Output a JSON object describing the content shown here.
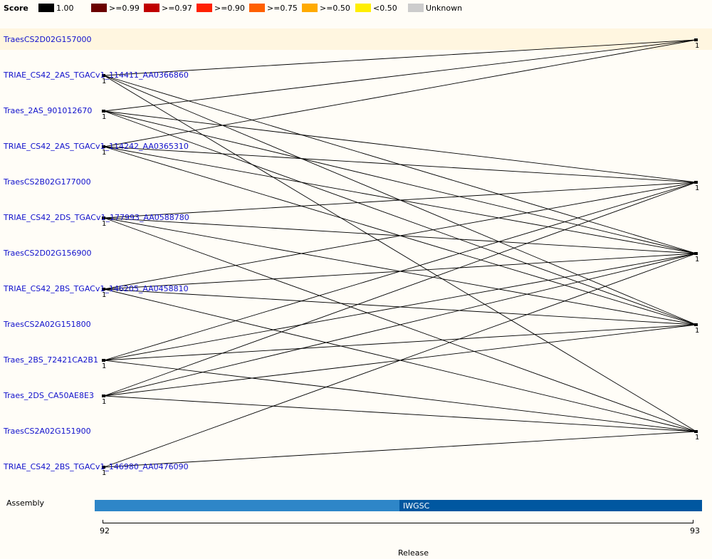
{
  "legend": {
    "title": "Score",
    "items": [
      {
        "label": "1.00",
        "color": "#000000"
      },
      {
        "label": ">=0.99",
        "color": "#6b0000"
      },
      {
        "label": ">=0.97",
        "color": "#c00000"
      },
      {
        "label": ">=0.90",
        "color": "#ff2000"
      },
      {
        "label": ">=0.75",
        "color": "#ff6000"
      },
      {
        "label": ">=0.50",
        "color": "#ffaa00"
      },
      {
        "label": "<0.50",
        "color": "#ffee00"
      },
      {
        "label": "Unknown",
        "color": "#cccccc"
      }
    ]
  },
  "genes": [
    {
      "id": "TraesCS2D02G157000",
      "highlighted": true
    },
    {
      "id": "TRIAE_CS42_2AS_TGACv1_114411_AA0366860"
    },
    {
      "id": "Traes_2AS_901012670"
    },
    {
      "id": "TRIAE_CS42_2AS_TGACv1_114242_AA0365310"
    },
    {
      "id": "TraesCS2B02G177000"
    },
    {
      "id": "TRIAE_CS42_2DS_TGACv1_177993_AA0588780"
    },
    {
      "id": "TraesCS2D02G156900"
    },
    {
      "id": "TRIAE_CS42_2BS_TGACv1_146205_AA0458810"
    },
    {
      "id": "TraesCS2A02G151800"
    },
    {
      "id": "Traes_2BS_72421CA2B1"
    },
    {
      "id": "Traes_2DS_CA50AE8E3"
    },
    {
      "id": "TraesCS2A02G151900"
    },
    {
      "id": "TRIAE_CS42_2BS_TGACv1_146980_AA0476090"
    }
  ],
  "left_nodes": [
    {
      "row": 1,
      "count": "1"
    },
    {
      "row": 2,
      "count": "1"
    },
    {
      "row": 3,
      "count": "1"
    },
    {
      "row": 5,
      "count": "1"
    },
    {
      "row": 7,
      "count": "1"
    },
    {
      "row": 9,
      "count": "1"
    },
    {
      "row": 10,
      "count": "1"
    },
    {
      "row": 12,
      "count": "1"
    }
  ],
  "right_nodes": [
    {
      "row": 0,
      "count": "1"
    },
    {
      "row": 4,
      "count": "1"
    },
    {
      "row": 6,
      "count": "1"
    },
    {
      "row": 8,
      "count": "1"
    },
    {
      "row": 11,
      "count": "1"
    }
  ],
  "links": [
    [
      1,
      0
    ],
    [
      1,
      6
    ],
    [
      1,
      8
    ],
    [
      1,
      11
    ],
    [
      2,
      0
    ],
    [
      2,
      4
    ],
    [
      2,
      6
    ],
    [
      2,
      8
    ],
    [
      3,
      0
    ],
    [
      3,
      4
    ],
    [
      3,
      6
    ],
    [
      3,
      8
    ],
    [
      5,
      4
    ],
    [
      5,
      6
    ],
    [
      5,
      8
    ],
    [
      5,
      11
    ],
    [
      7,
      4
    ],
    [
      7,
      6
    ],
    [
      7,
      8
    ],
    [
      7,
      11
    ],
    [
      9,
      4
    ],
    [
      9,
      6
    ],
    [
      9,
      8
    ],
    [
      9,
      11
    ],
    [
      10,
      4
    ],
    [
      10,
      6
    ],
    [
      10,
      8
    ],
    [
      10,
      11
    ],
    [
      12,
      6
    ],
    [
      12,
      11
    ]
  ],
  "link_color": "#000000",
  "assembly": {
    "label": "Assembly",
    "segments": [
      {
        "name": "",
        "color": "#2e86c8"
      },
      {
        "name": "IWGSC",
        "color": "#0057a0"
      }
    ]
  },
  "release_axis": {
    "label": "Release",
    "ticks": [
      "92",
      "93"
    ]
  }
}
